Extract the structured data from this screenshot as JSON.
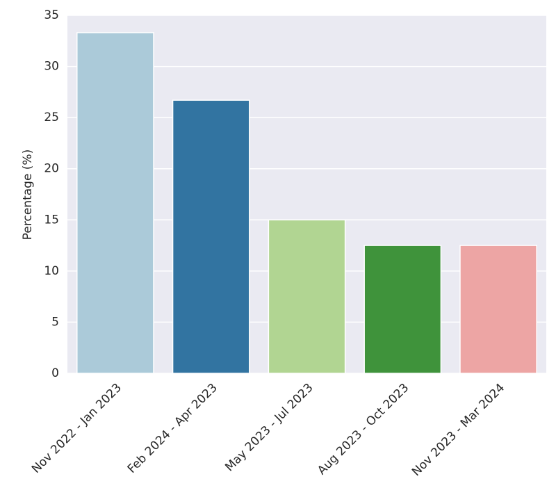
{
  "chart_data": {
    "type": "bar",
    "categories": [
      "Nov 2022 - Jan 2023",
      "Feb 2024 - Apr 2023",
      "May 2023 - Jul 2023",
      "Aug 2023 - Oct 2023",
      "Nov 2023 - Mar 2024"
    ],
    "values": [
      33.3,
      26.7,
      15.0,
      12.5,
      12.5
    ],
    "colors": [
      "#abcad9",
      "#3274a1",
      "#b1d592",
      "#3f933b",
      "#eda5a4"
    ],
    "y_label": "Percentage (%)",
    "ylim": [
      0,
      35
    ],
    "yticks": [
      0,
      5,
      10,
      15,
      20,
      25,
      30,
      35
    ],
    "grid": true
  }
}
